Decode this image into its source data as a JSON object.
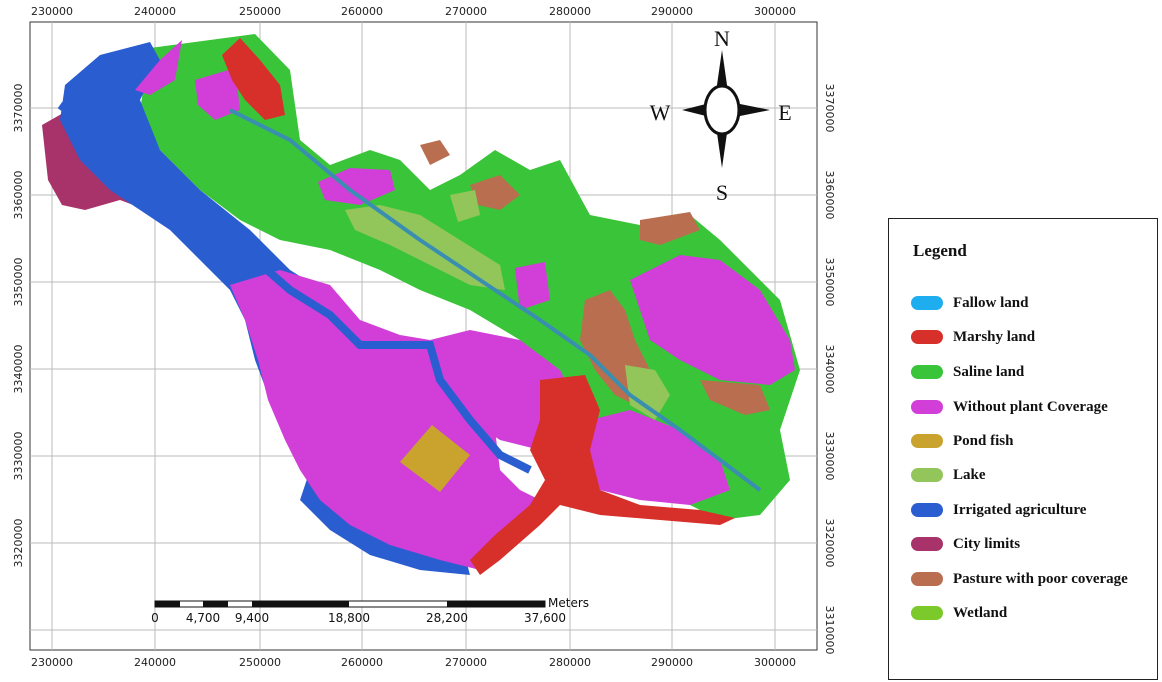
{
  "map": {
    "x_ticks": [
      "230000",
      "240000",
      "250000",
      "260000",
      "270000",
      "280000",
      "290000",
      "300000"
    ],
    "y_ticks": [
      "3370000",
      "3360000",
      "3350000",
      "3340000",
      "3330000",
      "3320000",
      "3310000"
    ],
    "scale_unit": "Meters",
    "scale_labels": [
      "0",
      "4,700",
      "9,400",
      "18,800",
      "28,200",
      "37,600"
    ],
    "compass": {
      "n": "N",
      "s": "S",
      "e": "E",
      "w": "W"
    }
  },
  "legend": {
    "title": "Legend",
    "items": [
      {
        "label": "Fallow land",
        "color": "#1eaef0"
      },
      {
        "label": "Marshy land",
        "color": "#d7302a"
      },
      {
        "label": "Saline land",
        "color": "#3ac43a"
      },
      {
        "label": "Without plant Coverage",
        "color": "#d13ed8"
      },
      {
        "label": "Pond fish",
        "color": "#c9a32e"
      },
      {
        "label": "Lake",
        "color": "#93c65a"
      },
      {
        "label": "Irrigated agriculture",
        "color": "#2a5ed0"
      },
      {
        "label": "City limits",
        "color": "#a8336a"
      },
      {
        "label": "Pasture with poor coverage",
        "color": "#b96e50"
      },
      {
        "label": "Wetland",
        "color": "#7cc92c"
      }
    ]
  }
}
